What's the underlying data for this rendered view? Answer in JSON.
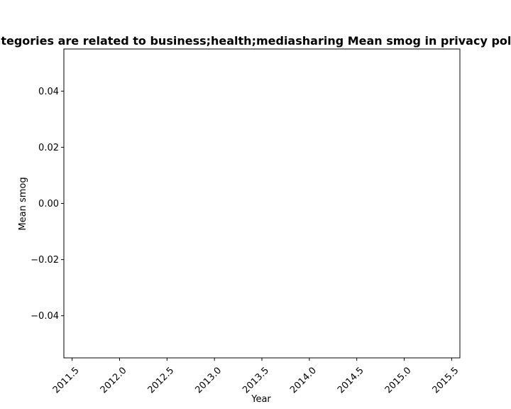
{
  "chart_data": {
    "type": "line",
    "title": "Categories are related to business;health;mediasharing Mean smog in privacy policies",
    "xlabel": "Year",
    "ylabel": "Mean smog",
    "x": [],
    "series": [],
    "xlim": [
      2011.5,
      2015.5
    ],
    "ylim": [
      -0.055,
      0.055
    ],
    "x_ticks": [
      "2011.5",
      "2012.0",
      "2012.5",
      "2013.0",
      "2013.5",
      "2014.0",
      "2014.5",
      "2015.0",
      "2015.5"
    ],
    "y_ticks": [
      "0.04",
      "0.02",
      "0.00",
      "−0.02",
      "−0.04"
    ],
    "grid": false,
    "legend": "none",
    "colors": {
      "axes": "#000000",
      "background": "#ffffff"
    }
  }
}
